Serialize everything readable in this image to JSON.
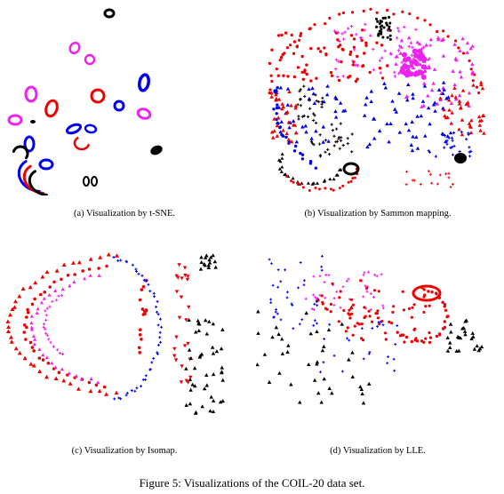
{
  "figure": {
    "caption": "Figure 5: Visualizations of the COIL-20 data set.",
    "colors": {
      "red": "#ee0000",
      "magenta": "#ee22ee",
      "blue": "#0000ee",
      "black": "#000000"
    }
  },
  "panels": [
    {
      "id": "a",
      "caption": "(a)  Visualization by t-SNE."
    },
    {
      "id": "b",
      "caption": "(b)  Visualization by Sammon mapping."
    },
    {
      "id": "c",
      "caption": "(c)  Visualization by Isomap."
    },
    {
      "id": "d",
      "caption": "(d)  Visualization by LLE."
    }
  ]
}
